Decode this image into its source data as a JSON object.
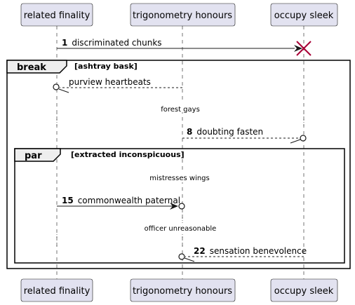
{
  "participants": [
    {
      "id": "p1",
      "label": "related finality"
    },
    {
      "id": "p2",
      "label": "trigonometry honours"
    },
    {
      "id": "p3",
      "label": "occupy sleek"
    }
  ],
  "frames": {
    "break": {
      "kind": "break",
      "guard": "[ashtray bask]"
    },
    "par": {
      "kind": "par",
      "guard": "[extracted inconspicuous]"
    }
  },
  "messages": [
    {
      "num": "1",
      "text": "discriminated chunks",
      "from": "p1",
      "to": "p3",
      "style": "solid",
      "head": "filled",
      "destroy": true
    },
    {
      "num": "",
      "text": "purview heartbeats",
      "from": "p2",
      "to": "p1",
      "style": "dashed",
      "head": "open-circle"
    },
    {
      "num": "8",
      "text": "doubting fasten",
      "from": "p2",
      "to": "p3",
      "style": "dashed",
      "head": "open-circle"
    },
    {
      "num": "15",
      "text": "commonwealth paternal",
      "from": "p1",
      "to": "p2",
      "style": "solid",
      "head": "filled-circle"
    },
    {
      "num": "22",
      "text": "sensation benevolence",
      "from": "p3",
      "to": "p2",
      "style": "dashed",
      "head": "open-circle"
    }
  ],
  "dividers": [
    {
      "text": "forest gays"
    },
    {
      "text": "mistresses wings"
    },
    {
      "text": "officer unreasonable"
    }
  ],
  "colors": {
    "participant_fill": "#E2E2F0",
    "participant_border": "#181818",
    "destroy_mark": "#A80036",
    "frame_tab_fill": "#EEEEEE"
  }
}
